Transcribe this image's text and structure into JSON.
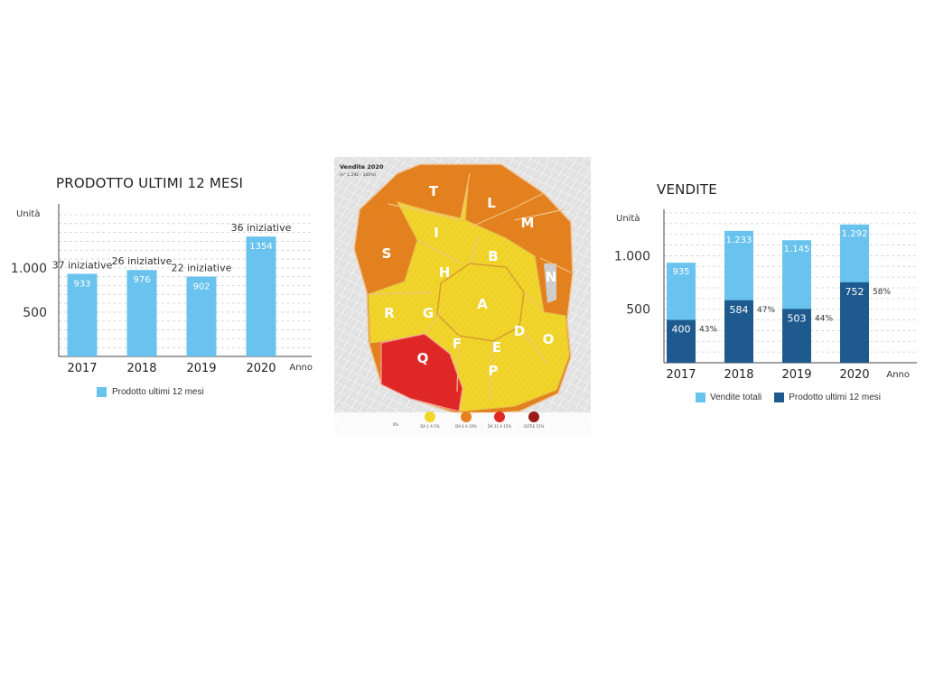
{
  "colors": {
    "light_blue": "#69c3ee",
    "dark_blue": "#1f5a8e",
    "map_yellow": "#f2d52a",
    "map_orange": "#e5821f",
    "map_red": "#e02826",
    "map_darkred": "#9b1a16",
    "map_street": "#d9d9d9"
  },
  "chart_data": [
    {
      "id": "left",
      "type": "bar",
      "title": "PRODOTTO ULTIMI 12 MESI",
      "ylabel": "Unità",
      "xlabel": "Anno",
      "categories": [
        "2017",
        "2018",
        "2019",
        "2020"
      ],
      "series": [
        {
          "name": "Prodotto ultimi 12 mesi",
          "values": [
            933,
            976,
            902,
            1354
          ],
          "value_labels": [
            "933",
            "976",
            "902",
            "1354"
          ]
        }
      ],
      "annotations": [
        "37 iniziative",
        "26 iniziative",
        "22 iniziative",
        "36 iniziative"
      ],
      "y_ticks": [
        {
          "value": 500,
          "label": "500"
        },
        {
          "value": 1000,
          "label": "1.000"
        }
      ],
      "ylim": [
        0,
        1600
      ],
      "grid": true,
      "legend_position": "bottom-left"
    },
    {
      "id": "right",
      "type": "bar",
      "title": "VENDITE",
      "ylabel": "Unità",
      "xlabel": "Anno",
      "categories": [
        "2017",
        "2018",
        "2019",
        "2020"
      ],
      "series": [
        {
          "name": "Vendite totali",
          "values": [
            935,
            1233,
            1145,
            1292
          ],
          "value_labels": [
            "935",
            "1.233",
            "1.145",
            "1.292"
          ]
        },
        {
          "name": "Prodotto ultimi 12 mesi",
          "values": [
            400,
            584,
            503,
            752
          ],
          "value_labels": [
            "400",
            "584",
            "503",
            "752"
          ]
        }
      ],
      "percent_labels": [
        "43%",
        "47%",
        "44%",
        "58%"
      ],
      "y_ticks": [
        {
          "value": 500,
          "label": "500"
        },
        {
          "value": 1000,
          "label": "1.000"
        }
      ],
      "ylim": [
        0,
        1400
      ],
      "grid": true,
      "legend_position": "bottom"
    }
  ],
  "map": {
    "title": "Vendite 2020",
    "subtitle": "(n° 1.292 - 100%)",
    "zone_letters": [
      "T",
      "L",
      "M",
      "I",
      "S",
      "B",
      "N",
      "H",
      "A",
      "R",
      "G",
      "D",
      "O",
      "F",
      "E",
      "Q",
      "P"
    ],
    "legend": [
      {
        "label": "0%"
      },
      {
        "label": "DA 1 A 5%",
        "color_key": "map_yellow"
      },
      {
        "label": "DA 6 A 10%",
        "color_key": "map_orange"
      },
      {
        "label": "DA 11 A 15%",
        "color_key": "map_red"
      },
      {
        "label": "OLTRE 15%",
        "color_key": "map_darkred"
      }
    ]
  }
}
